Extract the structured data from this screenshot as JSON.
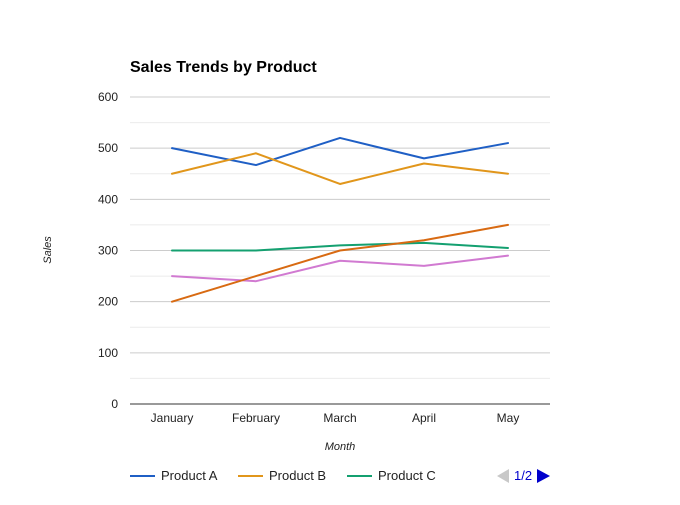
{
  "chart_data": {
    "type": "line",
    "title": "Sales Trends by Product",
    "xlabel": "Month",
    "ylabel": "Sales",
    "categories": [
      "January",
      "February",
      "March",
      "April",
      "May"
    ],
    "ylim": [
      0,
      600
    ],
    "yticks": [
      0,
      100,
      200,
      300,
      400,
      500,
      600
    ],
    "grid": true,
    "legend_position": "bottom",
    "series": [
      {
        "name": "Product A",
        "color": "#1f5fc5",
        "values": [
          500,
          467,
          520,
          480,
          510
        ]
      },
      {
        "name": "Product B",
        "color": "#e1961b",
        "values": [
          450,
          490,
          430,
          470,
          450
        ]
      },
      {
        "name": "Product C",
        "color": "#14a070",
        "values": [
          300,
          300,
          310,
          315,
          305
        ]
      },
      {
        "name": "",
        "color": "#d17ad1",
        "values": [
          250,
          240,
          280,
          270,
          290
        ]
      },
      {
        "name": "",
        "color": "#d86a12",
        "values": [
          200,
          250,
          300,
          320,
          350
        ]
      }
    ]
  },
  "legend": {
    "items": [
      "Product A",
      "Product B",
      "Product C"
    ]
  },
  "pager": {
    "label": "1/2",
    "prev_icon": "triangle-left-icon",
    "next_icon": "triangle-right-icon",
    "prev_color": "#c8c8c8",
    "next_color": "#0000cc"
  }
}
